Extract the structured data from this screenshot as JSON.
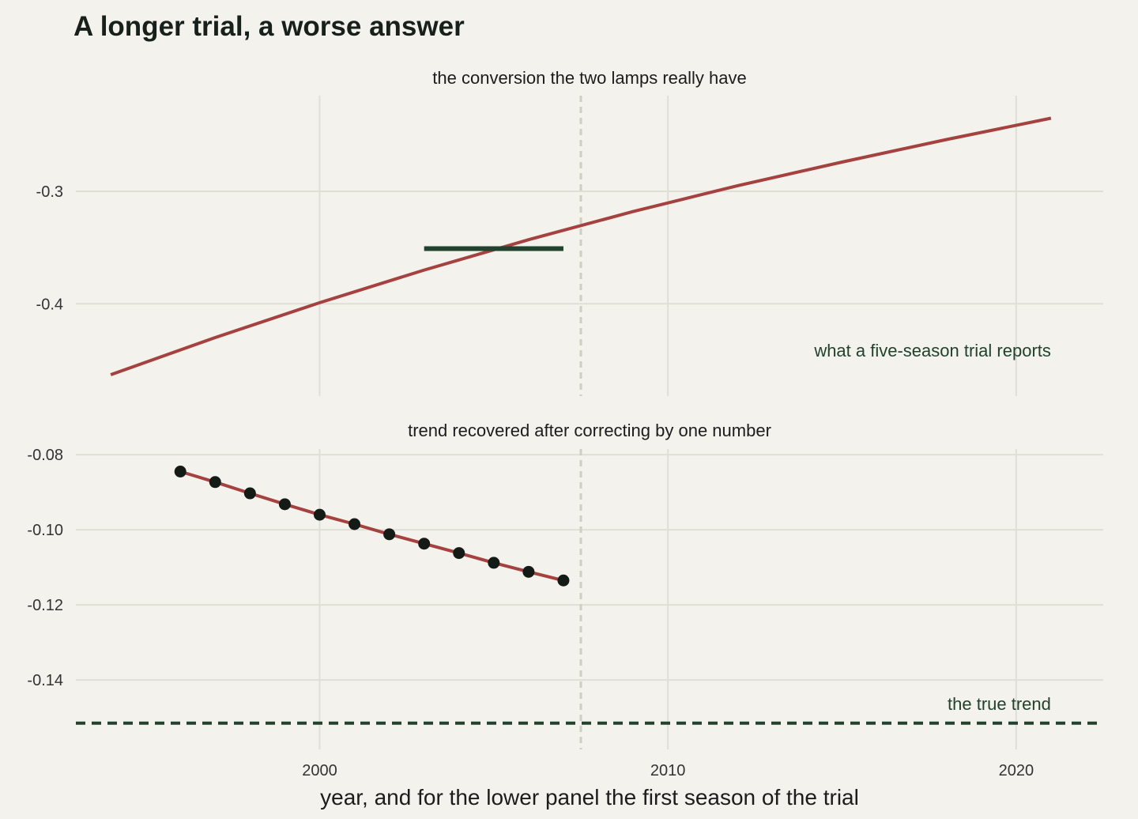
{
  "chart_data": {
    "type": "line",
    "title": "A longer trial, a worse answer",
    "xlabel": "year, and for the lower panel the first season of the trial",
    "xlim": [
      1993,
      2022.5
    ],
    "x_ticks": [
      2000,
      2010,
      2020
    ],
    "vline_x": 2007.5,
    "colors": {
      "curve": "#a5423f",
      "reference": "#22412e",
      "points": "#141a15",
      "grid": "#e0dfd6",
      "vline": "#cfcfc0"
    },
    "panels": [
      {
        "subtitle": "the conversion the two lamps really have",
        "ylim": [
          -0.482,
          -0.215
        ],
        "y_ticks": [
          -0.3,
          -0.4
        ],
        "curve": {
          "x": [
            1994,
            1997,
            2000,
            2003,
            2006,
            2009,
            2012,
            2015,
            2018,
            2021
          ],
          "y": [
            -0.463,
            -0.43,
            -0.399,
            -0.37,
            -0.343,
            -0.318,
            -0.295,
            -0.274,
            -0.254,
            -0.235
          ]
        },
        "segment": {
          "x": [
            2003,
            2007
          ],
          "y": -0.351
        },
        "annotation": "what a five-season trial reports",
        "annotation_pos": {
          "x": 2021,
          "y": -0.442
        }
      },
      {
        "subtitle": "trend recovered after correcting by one number",
        "ylim": [
          -0.1585,
          -0.0785
        ],
        "y_ticks": [
          -0.08,
          -0.1,
          -0.12,
          -0.14
        ],
        "y_tick_labels": [
          "-0.08",
          "-0.10",
          "-0.12",
          "-0.14"
        ],
        "points": {
          "x": [
            1996,
            1997,
            1998,
            1999,
            2000,
            2001,
            2002,
            2003,
            2004,
            2005,
            2006,
            2007
          ],
          "y": [
            -0.0845,
            -0.0873,
            -0.0903,
            -0.0932,
            -0.096,
            -0.0985,
            -0.1012,
            -0.1037,
            -0.1062,
            -0.1088,
            -0.1112,
            -0.1135
          ]
        },
        "hline_y": -0.1515,
        "annotation": "the true trend",
        "annotation_pos": {
          "x": 2021,
          "y": -0.1465
        }
      }
    ]
  }
}
